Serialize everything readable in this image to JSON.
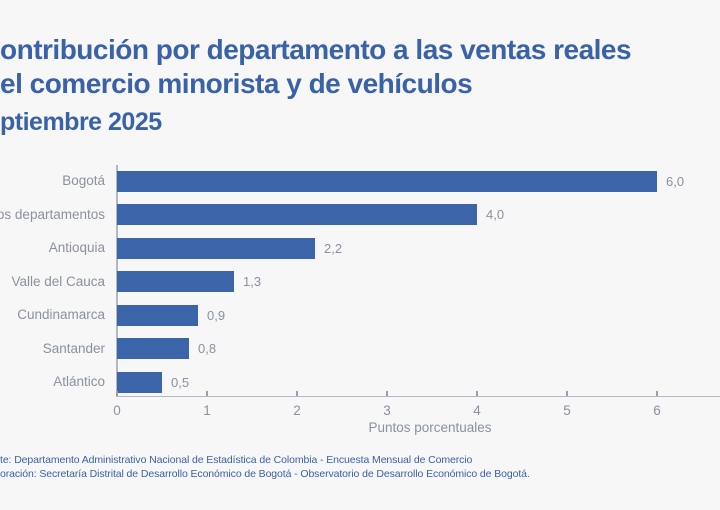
{
  "header": {
    "title_line1": "ontribución por departamento a las ventas reales",
    "title_line2": "el comercio minorista y de vehículos",
    "subtitle": "ptiembre 2025"
  },
  "chart_data": {
    "type": "bar",
    "orientation": "horizontal",
    "title_visible": "ontribución por departamento a las ventas reale / el comercio minorista y de vehículos",
    "subtitle_visible": "ptiembre 2025",
    "categories": [
      "Bogotá",
      "Otros departamentos",
      "Antioquia",
      "Valle del Cauca",
      "Cundinamarca",
      "Santander",
      "Atlántico"
    ],
    "values": [
      6.0,
      4.0,
      2.2,
      1.3,
      0.9,
      0.8,
      0.5
    ],
    "value_labels": [
      "6,0",
      "4,0",
      "2,2",
      "1,3",
      "0,9",
      "0,8",
      "0,5"
    ],
    "xlabel": "Puntos porcentuales",
    "x_ticks": [
      0,
      1,
      2,
      3,
      4,
      5,
      6
    ],
    "xlim": [
      0,
      6.7
    ],
    "grid": false,
    "legend": "none",
    "bar_color": "#3B64A9",
    "label_color": "#8A929D",
    "axis_color": "#B3B8C0"
  },
  "footer": {
    "line1": "te: Departamento Administrativo Nacional de Estadística de Colombia - Encuesta Mensual de Comercio",
    "line2": "oración: Secretaría Distrital de Desarrollo Económico de Bogotá - Observatorio de Desarrollo Económico de Bogotá."
  },
  "colors": {
    "background": "#F7F7F7",
    "heading_blue": "#3A62A7",
    "bar_blue": "#3B64A9",
    "gray_text": "#8A929D"
  }
}
